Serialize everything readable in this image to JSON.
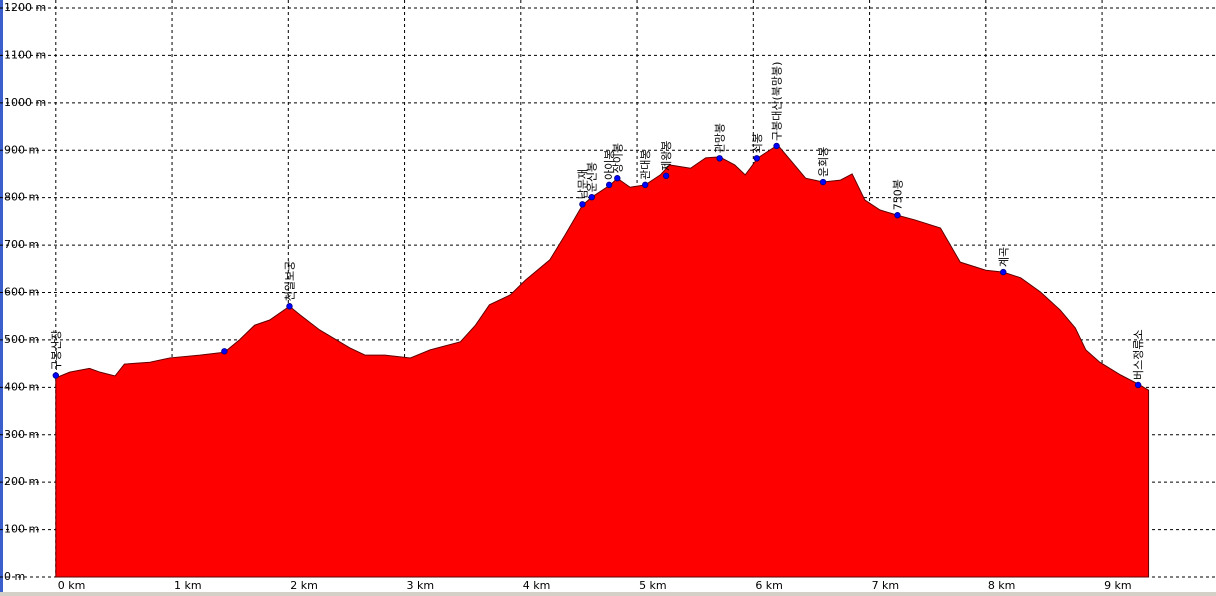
{
  "chart_data": {
    "type": "area",
    "color": "#ff0000",
    "grid": true,
    "xlim": [
      -0.48,
      9.98
    ],
    "ylim": [
      0,
      1200
    ],
    "xticks": [
      {
        "value": 0,
        "label": "0 km"
      },
      {
        "value": 1,
        "label": "1 km"
      },
      {
        "value": 2,
        "label": "2 km"
      },
      {
        "value": 3,
        "label": "3 km"
      },
      {
        "value": 4,
        "label": "4 km"
      },
      {
        "value": 5,
        "label": "5 km"
      },
      {
        "value": 6,
        "label": "6 km"
      },
      {
        "value": 7,
        "label": "7 km"
      },
      {
        "value": 8,
        "label": "8 km"
      },
      {
        "value": 9,
        "label": "9 km"
      }
    ],
    "yticks": [
      {
        "value": 0,
        "label": "0 m"
      },
      {
        "value": 100,
        "label": "100 m"
      },
      {
        "value": 200,
        "label": "200 m"
      },
      {
        "value": 300,
        "label": "300 m"
      },
      {
        "value": 400,
        "label": "400 m"
      },
      {
        "value": 500,
        "label": "500 m"
      },
      {
        "value": 600,
        "label": "600 m"
      },
      {
        "value": 700,
        "label": "700 m"
      },
      {
        "value": 800,
        "label": "800 m"
      },
      {
        "value": 900,
        "label": "900 m"
      },
      {
        "value": 1000,
        "label": "1000 m"
      },
      {
        "value": 1100,
        "label": "1100 m"
      },
      {
        "value": 1200,
        "label": "1200 m"
      }
    ],
    "x": [
      0,
      0.12,
      0.29,
      0.38,
      0.51,
      0.59,
      0.81,
      0.98,
      1.24,
      1.45,
      1.58,
      1.71,
      1.84,
      2.01,
      2.1,
      2.27,
      2.53,
      2.66,
      2.83,
      3.05,
      3.22,
      3.48,
      3.61,
      3.73,
      3.91,
      4.04,
      4.25,
      4.38,
      4.53,
      4.61,
      4.77,
      4.83,
      4.94,
      5.07,
      5.2,
      5.28,
      5.46,
      5.59,
      5.71,
      5.84,
      5.93,
      6.04,
      6.14,
      6.21,
      6.32,
      6.45,
      6.6,
      6.75,
      6.85,
      6.96,
      7.09,
      7.24,
      7.39,
      7.61,
      7.78,
      8.0,
      8.15,
      8.3,
      8.47,
      8.64,
      8.77,
      8.86,
      8.98,
      9.16,
      9.31,
      9.4
    ],
    "values": [
      420,
      432,
      440,
      432,
      424,
      449,
      453,
      462,
      468,
      474,
      500,
      531,
      542,
      571,
      553,
      521,
      483,
      468,
      468,
      462,
      479,
      496,
      531,
      574,
      595,
      626,
      669,
      721,
      784,
      801,
      827,
      841,
      822,
      827,
      848,
      869,
      862,
      884,
      886,
      869,
      848,
      884,
      900,
      911,
      879,
      841,
      833,
      837,
      850,
      795,
      774,
      763,
      753,
      736,
      664,
      647,
      643,
      631,
      601,
      563,
      525,
      479,
      453,
      426,
      407,
      394
    ],
    "waypoints": {
      "color": "#0000ff",
      "x": [
        0,
        1.45,
        2.01,
        4.53,
        4.61,
        4.76,
        4.83,
        5.07,
        5.25,
        5.71,
        6.03,
        6.2,
        6.6,
        7.24,
        8.15,
        9.31
      ],
      "values": [
        425,
        476,
        571,
        786,
        801,
        827,
        841,
        827,
        846,
        883,
        883,
        909,
        833,
        763,
        643,
        405
      ],
      "labels": [
        "구봉산장",
        null,
        "천일보궁",
        "남문재",
        "운신봉",
        "아이봉",
        "장이봉",
        "관대봉",
        "제왕봉",
        "관망봉",
        "쇠봉",
        "구봉대산(북망봉)",
        "운회봉",
        "750봉",
        "계곡",
        "버스정류소"
      ]
    }
  }
}
